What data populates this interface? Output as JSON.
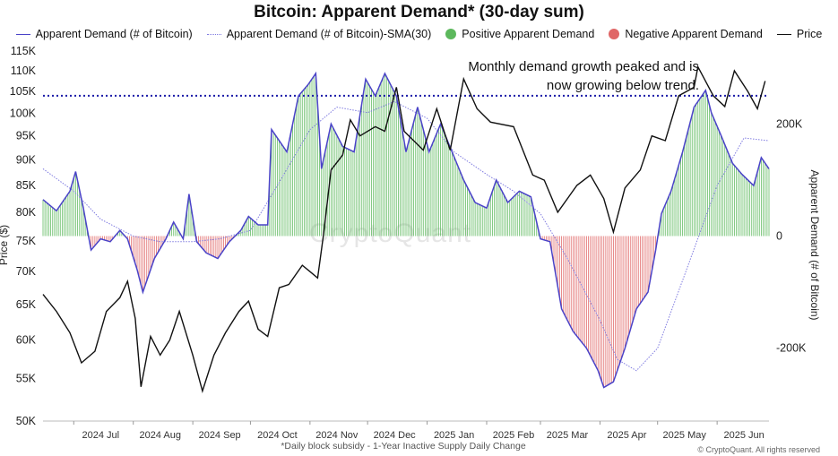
{
  "chart_data": {
    "type": "bar",
    "title": "Bitcoin: Apparent Demand* (30-day sum)",
    "annotation": [
      "Monthly demand growth peaked and is",
      "now growing below trend."
    ],
    "footnote": "*Daily block subsidy - 1-Year Inactive Supply Daily Change",
    "credit": "© CryptoQuant. All rights reserved",
    "watermark": "CryptoQuant",
    "ylabel_left": "Price ($)",
    "ylabel_right": "Apparent Demand (# of Bitcoin)",
    "left_axis": {
      "scale": "log",
      "ylim": [
        50000,
        115000
      ],
      "ticks": [
        [
          "115K",
          115000
        ],
        [
          "110K",
          110000
        ],
        [
          "105K",
          105000
        ],
        [
          "100K",
          100000
        ],
        [
          "95K",
          95000
        ],
        [
          "90K",
          90000
        ],
        [
          "85K",
          85000
        ],
        [
          "80K",
          80000
        ],
        [
          "75K",
          75000
        ],
        [
          "70K",
          70000
        ],
        [
          "65K",
          65000
        ],
        [
          "60K",
          60000
        ],
        [
          "55K",
          55000
        ],
        [
          "50K",
          50000
        ]
      ]
    },
    "right_axis": {
      "ylim": [
        -330000,
        330000
      ],
      "ticks": [
        [
          "200K",
          200000
        ],
        [
          "0",
          0
        ],
        [
          "-200K",
          -200000
        ]
      ]
    },
    "x_axis": {
      "range": [
        "2024-06-15",
        "2025-06-28"
      ],
      "ticks": [
        [
          "2024 Jul",
          "2024-07-01"
        ],
        [
          "2024 Aug",
          "2024-08-01"
        ],
        [
          "2024 Sep",
          "2024-09-01"
        ],
        [
          "2024 Oct",
          "2024-10-01"
        ],
        [
          "2024 Nov",
          "2024-11-01"
        ],
        [
          "2024 Dec",
          "2024-12-01"
        ],
        [
          "2025 Jan",
          "2025-01-01"
        ],
        [
          "2025 Feb",
          "2025-02-01"
        ],
        [
          "2025 Mar",
          "2025-03-01"
        ],
        [
          "2025 Apr",
          "2025-04-01"
        ],
        [
          "2025 May",
          "2025-05-01"
        ],
        [
          "2025 Jun",
          "2025-06-01"
        ]
      ]
    },
    "reference_line": {
      "price": 104000,
      "style": "dotted",
      "color": "#1a1aa8"
    },
    "colors": {
      "demand": "#4a43c8",
      "sma": "#7f7be0",
      "positive": "#5cb85c",
      "negative": "#e06666",
      "price": "#111111"
    },
    "series": [
      {
        "name": "Apparent Demand (# of Bitcoin)",
        "axis": "right",
        "type": "line",
        "points": [
          [
            "2024-06-15",
            65000
          ],
          [
            "2024-06-22",
            45000
          ],
          [
            "2024-06-29",
            80000
          ],
          [
            "2024-07-02",
            115000
          ],
          [
            "2024-07-06",
            50000
          ],
          [
            "2024-07-10",
            -25000
          ],
          [
            "2024-07-15",
            -5000
          ],
          [
            "2024-07-20",
            -10000
          ],
          [
            "2024-07-25",
            10000
          ],
          [
            "2024-07-29",
            -5000
          ],
          [
            "2024-08-03",
            -60000
          ],
          [
            "2024-08-06",
            -100000
          ],
          [
            "2024-08-12",
            -40000
          ],
          [
            "2024-08-18",
            -5000
          ],
          [
            "2024-08-22",
            25000
          ],
          [
            "2024-08-27",
            -5000
          ],
          [
            "2024-08-30",
            75000
          ],
          [
            "2024-09-03",
            -10000
          ],
          [
            "2024-09-08",
            -30000
          ],
          [
            "2024-09-14",
            -40000
          ],
          [
            "2024-09-20",
            -10000
          ],
          [
            "2024-09-26",
            10000
          ],
          [
            "2024-09-30",
            35000
          ],
          [
            "2024-10-05",
            20000
          ],
          [
            "2024-10-10",
            20000
          ],
          [
            "2024-10-12",
            190000
          ],
          [
            "2024-10-20",
            150000
          ],
          [
            "2024-10-26",
            250000
          ],
          [
            "2024-10-31",
            270000
          ],
          [
            "2024-11-04",
            290000
          ],
          [
            "2024-11-07",
            120000
          ],
          [
            "2024-11-12",
            200000
          ],
          [
            "2024-11-18",
            160000
          ],
          [
            "2024-11-24",
            150000
          ],
          [
            "2024-11-30",
            280000
          ],
          [
            "2024-12-05",
            250000
          ],
          [
            "2024-12-10",
            290000
          ],
          [
            "2024-12-16",
            250000
          ],
          [
            "2024-12-21",
            150000
          ],
          [
            "2024-12-27",
            230000
          ],
          [
            "2025-01-02",
            150000
          ],
          [
            "2025-01-08",
            200000
          ],
          [
            "2025-01-14",
            150000
          ],
          [
            "2025-01-20",
            100000
          ],
          [
            "2025-01-26",
            60000
          ],
          [
            "2025-02-01",
            50000
          ],
          [
            "2025-02-06",
            100000
          ],
          [
            "2025-02-12",
            60000
          ],
          [
            "2025-02-18",
            80000
          ],
          [
            "2025-02-24",
            70000
          ],
          [
            "2025-03-01",
            -5000
          ],
          [
            "2025-03-06",
            -10000
          ],
          [
            "2025-03-12",
            -130000
          ],
          [
            "2025-03-18",
            -170000
          ],
          [
            "2025-03-25",
            -200000
          ],
          [
            "2025-03-31",
            -240000
          ],
          [
            "2025-04-03",
            -270000
          ],
          [
            "2025-04-08",
            -260000
          ],
          [
            "2025-04-14",
            -200000
          ],
          [
            "2025-04-20",
            -130000
          ],
          [
            "2025-04-26",
            -100000
          ],
          [
            "2025-04-30",
            -25000
          ],
          [
            "2025-05-03",
            40000
          ],
          [
            "2025-05-08",
            80000
          ],
          [
            "2025-05-14",
            150000
          ],
          [
            "2025-05-20",
            230000
          ],
          [
            "2025-05-26",
            260000
          ],
          [
            "2025-05-29",
            220000
          ],
          [
            "2025-06-03",
            180000
          ],
          [
            "2025-06-09",
            130000
          ],
          [
            "2025-06-14",
            110000
          ],
          [
            "2025-06-20",
            90000
          ],
          [
            "2025-06-24",
            140000
          ],
          [
            "2025-06-28",
            120000
          ]
        ]
      },
      {
        "name": "Apparent Demand (# of Bitcoin)-SMA(30)",
        "axis": "right",
        "type": "line",
        "points": [
          [
            "2024-06-15",
            120000
          ],
          [
            "2024-07-01",
            80000
          ],
          [
            "2024-07-15",
            30000
          ],
          [
            "2024-08-01",
            0
          ],
          [
            "2024-08-15",
            -10000
          ],
          [
            "2024-09-01",
            -10000
          ],
          [
            "2024-09-15",
            -5000
          ],
          [
            "2024-10-01",
            10000
          ],
          [
            "2024-10-15",
            90000
          ],
          [
            "2024-11-01",
            190000
          ],
          [
            "2024-11-15",
            230000
          ],
          [
            "2024-12-01",
            220000
          ],
          [
            "2024-12-15",
            240000
          ],
          [
            "2025-01-01",
            210000
          ],
          [
            "2025-01-15",
            150000
          ],
          [
            "2025-02-01",
            110000
          ],
          [
            "2025-02-15",
            80000
          ],
          [
            "2025-03-01",
            40000
          ],
          [
            "2025-03-15",
            -40000
          ],
          [
            "2025-04-01",
            -150000
          ],
          [
            "2025-04-10",
            -220000
          ],
          [
            "2025-04-20",
            -240000
          ],
          [
            "2025-05-01",
            -200000
          ],
          [
            "2025-05-15",
            -70000
          ],
          [
            "2025-06-01",
            90000
          ],
          [
            "2025-06-15",
            175000
          ],
          [
            "2025-06-28",
            170000
          ]
        ]
      },
      {
        "name": "Price",
        "axis": "left",
        "type": "line",
        "points": [
          [
            "2024-06-15",
            66500
          ],
          [
            "2024-06-22",
            64000
          ],
          [
            "2024-06-29",
            61000
          ],
          [
            "2024-07-05",
            57000
          ],
          [
            "2024-07-12",
            58500
          ],
          [
            "2024-07-18",
            64000
          ],
          [
            "2024-07-25",
            66000
          ],
          [
            "2024-07-29",
            68500
          ],
          [
            "2024-08-02",
            63000
          ],
          [
            "2024-08-05",
            54000
          ],
          [
            "2024-08-10",
            60500
          ],
          [
            "2024-08-15",
            58000
          ],
          [
            "2024-08-20",
            60000
          ],
          [
            "2024-08-25",
            64000
          ],
          [
            "2024-09-01",
            58000
          ],
          [
            "2024-09-06",
            53500
          ],
          [
            "2024-09-12",
            58000
          ],
          [
            "2024-09-18",
            61000
          ],
          [
            "2024-09-25",
            64000
          ],
          [
            "2024-09-30",
            65500
          ],
          [
            "2024-10-05",
            61500
          ],
          [
            "2024-10-10",
            60500
          ],
          [
            "2024-10-16",
            67500
          ],
          [
            "2024-10-21",
            68000
          ],
          [
            "2024-10-28",
            71000
          ],
          [
            "2024-11-01",
            70000
          ],
          [
            "2024-11-05",
            69000
          ],
          [
            "2024-11-08",
            76000
          ],
          [
            "2024-11-12",
            88000
          ],
          [
            "2024-11-18",
            91000
          ],
          [
            "2024-11-22",
            98500
          ],
          [
            "2024-11-27",
            95000
          ],
          [
            "2024-12-05",
            97000
          ],
          [
            "2024-12-10",
            96000
          ],
          [
            "2024-12-16",
            106000
          ],
          [
            "2024-12-20",
            96000
          ],
          [
            "2024-12-30",
            92000
          ],
          [
            "2025-01-06",
            101000
          ],
          [
            "2025-01-13",
            92000
          ],
          [
            "2025-01-20",
            108000
          ],
          [
            "2025-01-27",
            101000
          ],
          [
            "2025-02-03",
            98000
          ],
          [
            "2025-02-15",
            97000
          ],
          [
            "2025-02-25",
            87000
          ],
          [
            "2025-03-03",
            86000
          ],
          [
            "2025-03-10",
            80000
          ],
          [
            "2025-03-20",
            85000
          ],
          [
            "2025-03-27",
            87000
          ],
          [
            "2025-04-03",
            82500
          ],
          [
            "2025-04-08",
            76500
          ],
          [
            "2025-04-14",
            84500
          ],
          [
            "2025-04-22",
            88000
          ],
          [
            "2025-04-28",
            95000
          ],
          [
            "2025-05-05",
            94000
          ],
          [
            "2025-05-12",
            104000
          ],
          [
            "2025-05-20",
            106000
          ],
          [
            "2025-05-22",
            111000
          ],
          [
            "2025-05-30",
            104000
          ],
          [
            "2025-06-05",
            101500
          ],
          [
            "2025-06-10",
            110000
          ],
          [
            "2025-06-17",
            105000
          ],
          [
            "2025-06-22",
            101000
          ],
          [
            "2025-06-26",
            107500
          ]
        ]
      }
    ],
    "legend": [
      {
        "label": "Apparent Demand (# of Bitcoin)",
        "marker": "line"
      },
      {
        "label": "Apparent Demand (# of Bitcoin)-SMA(30)",
        "marker": "dotted-line"
      },
      {
        "label": "Positive Apparent Demand",
        "marker": "dot-positive"
      },
      {
        "label": "Negative Apparent Demand",
        "marker": "dot-negative"
      },
      {
        "label": "Price",
        "marker": "line-black"
      }
    ],
    "legend_placement": "top-center",
    "grid": false
  }
}
